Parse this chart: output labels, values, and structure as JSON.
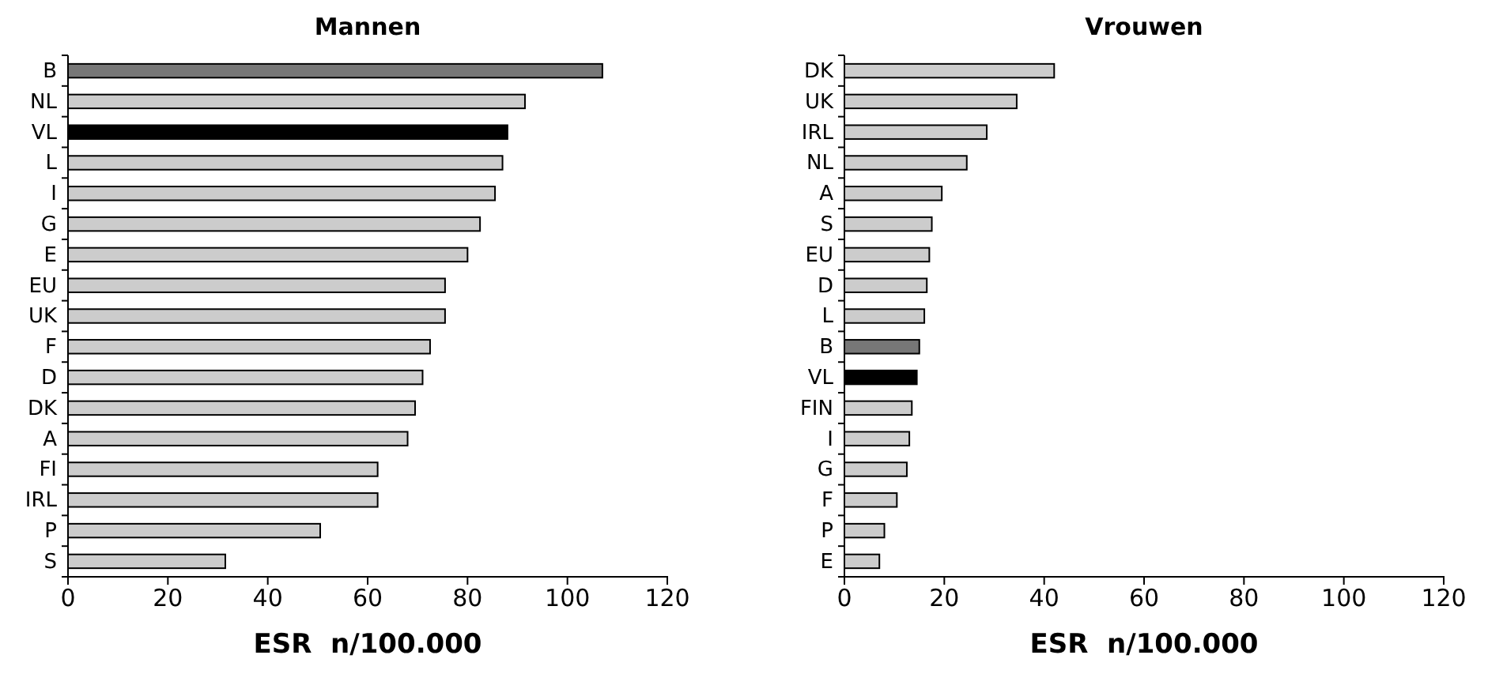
{
  "chart_data": [
    {
      "type": "bar",
      "orientation": "horizontal",
      "title": "Mannen",
      "xlabel": "ESR  n/100.000",
      "categories": [
        "B",
        "NL",
        "VL",
        "L",
        "I",
        "G",
        "E",
        "EU",
        "UK",
        "F",
        "D",
        "DK",
        "A",
        "FI",
        "IRL",
        "P",
        "S"
      ],
      "values": [
        107,
        91.5,
        88,
        87,
        85.5,
        82.5,
        80,
        75.5,
        75.5,
        72.5,
        71,
        69.5,
        68,
        62,
        62,
        50.5,
        31.5
      ],
      "colors": [
        "#777777",
        "#cccccc",
        "#000000",
        "#cccccc",
        "#cccccc",
        "#cccccc",
        "#cccccc",
        "#cccccc",
        "#cccccc",
        "#cccccc",
        "#cccccc",
        "#cccccc",
        "#cccccc",
        "#cccccc",
        "#cccccc",
        "#cccccc",
        "#cccccc"
      ],
      "xlim": [
        0,
        120
      ],
      "xticks": [
        0,
        20,
        40,
        60,
        80,
        100,
        120
      ],
      "grid": false
    },
    {
      "type": "bar",
      "orientation": "horizontal",
      "title": "Vrouwen",
      "xlabel": "ESR  n/100.000",
      "categories": [
        "DK",
        "UK",
        "IRL",
        "NL",
        "A",
        "S",
        "EU",
        "D",
        "L",
        "B",
        "VL",
        "FIN",
        "I",
        "G",
        "F",
        "P",
        "E"
      ],
      "values": [
        42,
        34.5,
        28.5,
        24.5,
        19.5,
        17.5,
        17,
        16.5,
        16,
        15,
        14.5,
        13.5,
        13,
        12.5,
        10.5,
        8,
        7
      ],
      "colors": [
        "#cccccc",
        "#cccccc",
        "#cccccc",
        "#cccccc",
        "#cccccc",
        "#cccccc",
        "#cccccc",
        "#cccccc",
        "#cccccc",
        "#777777",
        "#000000",
        "#cccccc",
        "#cccccc",
        "#cccccc",
        "#cccccc",
        "#cccccc",
        "#cccccc"
      ],
      "xlim": [
        0,
        120
      ],
      "xticks": [
        0,
        20,
        40,
        60,
        80,
        100,
        120
      ],
      "grid": false
    }
  ]
}
